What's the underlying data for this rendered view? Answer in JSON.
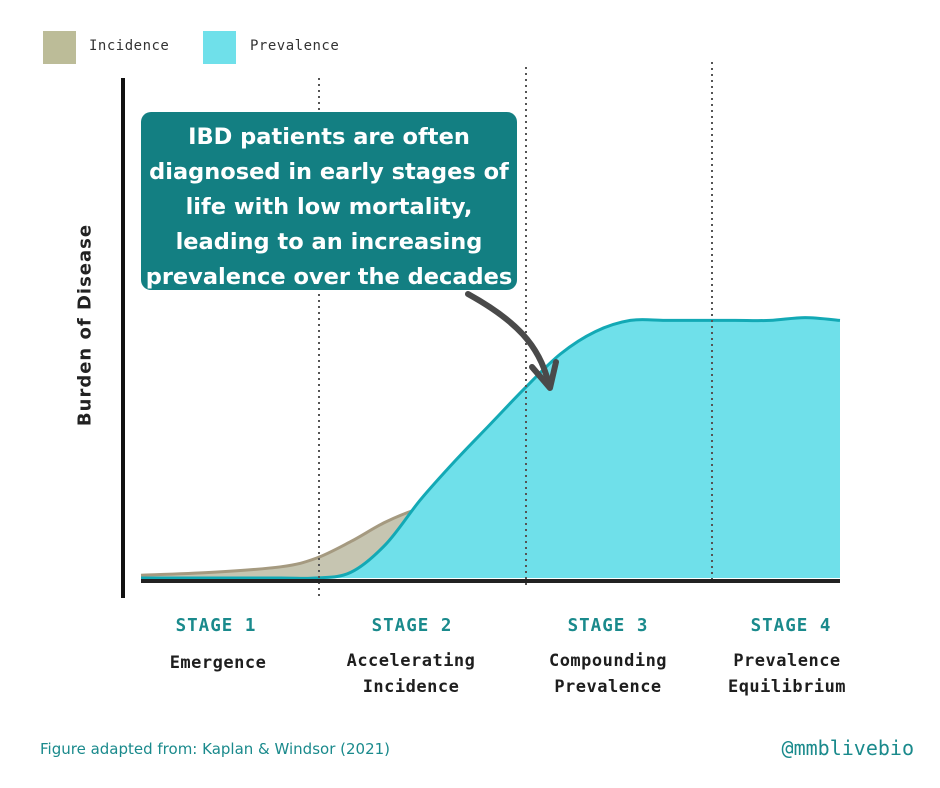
{
  "chart_data": {
    "type": "area",
    "ylabel": "Burden of Disease",
    "xlabel": "",
    "legend": {
      "placement": "top-left",
      "entries": [
        "Incidence",
        "Prevalence"
      ]
    },
    "x": [
      0,
      0.1,
      0.2,
      0.25,
      0.3,
      0.35,
      0.4,
      0.45,
      0.5,
      0.55,
      0.6,
      0.65,
      0.7,
      0.75,
      0.8,
      0.85,
      0.9,
      0.95,
      1.0
    ],
    "series": [
      {
        "name": "Incidence",
        "color": "#b5b892",
        "values": [
          0.01,
          0.02,
          0.04,
          0.07,
          0.13,
          0.2,
          0.25,
          0.28,
          0.3,
          0.31,
          0.31,
          0.3,
          0.28,
          0.26,
          0.25,
          0.25,
          0.25,
          0.26,
          0.26
        ]
      },
      {
        "name": "Prevalence",
        "color": "#6fe0ea",
        "values": [
          0,
          0,
          0,
          0,
          0.02,
          0.12,
          0.28,
          0.42,
          0.55,
          0.68,
          0.8,
          0.88,
          0.92,
          0.92,
          0.92,
          0.92,
          0.92,
          0.93,
          0.92
        ]
      }
    ],
    "stages": [
      {
        "label": "STAGE 1",
        "name": "Emergence",
        "x_start": 0
      },
      {
        "label": "STAGE 2",
        "name": "Accelerating\nIncidence",
        "x_start": 0.25
      },
      {
        "label": "STAGE 3",
        "name": "Compounding\nPrevalence",
        "x_start": 0.55
      },
      {
        "label": "STAGE 4",
        "name": "Prevalence\nEquilibrium",
        "x_start": 0.82
      }
    ],
    "annotation": "IBD patients are often diagnosed in early stages of life with low mortality, leading to an increasing prevalence over the decades",
    "grid": false
  },
  "legend": {
    "incidence_label": "Incidence",
    "prevalence_label": "Prevalence",
    "incidence_color": "#bcbc98",
    "prevalence_color": "#6fe0ea"
  },
  "callout": {
    "lines": [
      "IBD patients are often",
      "diagnosed in early stages of",
      "life with low mortality,",
      "leading to an increasing",
      "prevalence over the decades"
    ]
  },
  "stages": [
    {
      "title": "STAGE 1",
      "name": "Emergence"
    },
    {
      "title": "STAGE 2",
      "name": "Accelerating\nIncidence"
    },
    {
      "title": "STAGE 3",
      "name": "Compounding\nPrevalence"
    },
    {
      "title": "STAGE 4",
      "name": "Prevalence\nEquilibrium"
    }
  ],
  "footer": {
    "source": "Figure adapted from: Kaplan & Windsor (2021)",
    "handle": "@mmblivebio"
  }
}
